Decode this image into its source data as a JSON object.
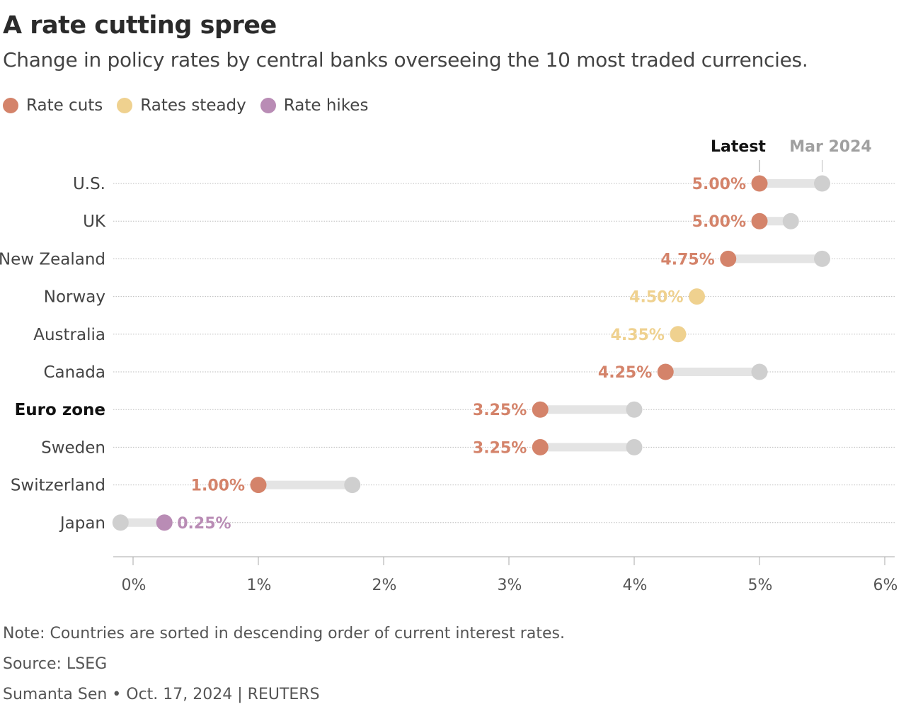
{
  "title": "A rate cutting spree",
  "subtitle": "Change in policy rates by central banks overseeing the 10 most traded currencies.",
  "legend": [
    {
      "label": "Rate cuts",
      "color": "#d4836a"
    },
    {
      "label": "Rates steady",
      "color": "#efd18f"
    },
    {
      "label": "Rate hikes",
      "color": "#b98cb5"
    }
  ],
  "chart_data": {
    "type": "dot-plot",
    "categories": [
      "U.S.",
      "UK",
      "New Zealand",
      "Norway",
      "Australia",
      "Canada",
      "Euro zone",
      "Sweden",
      "Switzerland",
      "Japan"
    ],
    "highlighted_category": "Euro zone",
    "series": [
      {
        "name": "Latest",
        "values": [
          5.0,
          5.0,
          4.75,
          4.5,
          4.35,
          4.25,
          3.25,
          3.25,
          1.0,
          0.25
        ]
      },
      {
        "name": "Mar 2024",
        "values": [
          5.5,
          5.25,
          5.5,
          4.5,
          4.35,
          5.0,
          4.0,
          4.0,
          1.75,
          -0.1
        ]
      }
    ],
    "value_labels": [
      "5.00%",
      "5.00%",
      "4.75%",
      "4.50%",
      "4.35%",
      "4.25%",
      "3.25%",
      "3.25%",
      "1.00%",
      "0.25%"
    ],
    "status": [
      "cut",
      "cut",
      "cut",
      "steady",
      "steady",
      "cut",
      "cut",
      "cut",
      "cut",
      "hike"
    ],
    "colors": {
      "cut": "#d4836a",
      "steady": "#efd18f",
      "hike": "#b98cb5",
      "previous": "#cfcfcf",
      "connector": "#e4e4e4"
    },
    "xticks": [
      "0%",
      "1%",
      "2%",
      "3%",
      "4%",
      "5%",
      "6%"
    ],
    "xlim": [
      -0.15,
      6.05
    ],
    "grid": "dotted horizontal row lines"
  },
  "footer": {
    "note": "Note: Countries are sorted in descending order of current interest rates.",
    "source": "Source: LSEG",
    "credit": "Sumanta Sen • Oct. 17, 2024 | REUTERS"
  }
}
